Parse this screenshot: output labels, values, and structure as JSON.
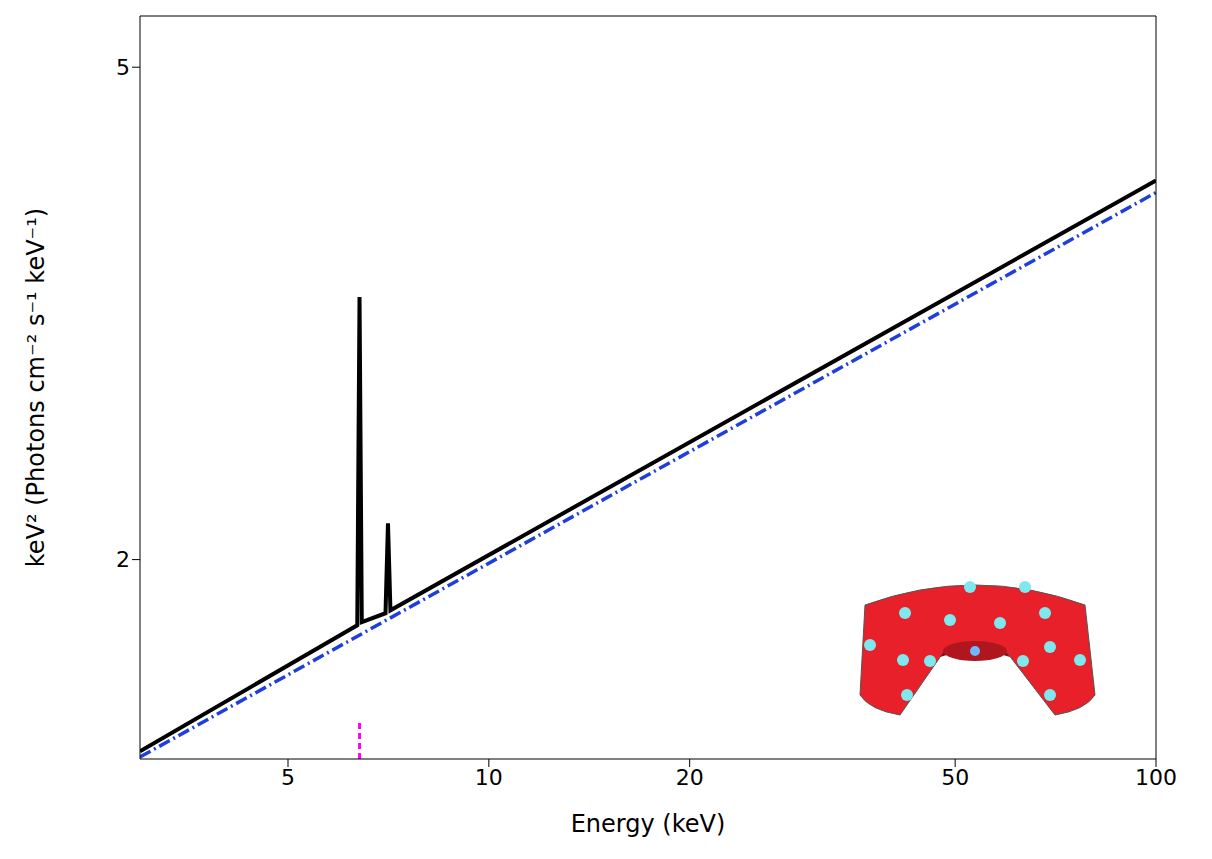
{
  "chart_data": {
    "type": "line",
    "x_label": "Energy (keV)",
    "y_label": "keV² (Photons cm⁻² s⁻¹ keV⁻¹)",
    "log": true,
    "xlim": [
      3,
      100
    ],
    "xticks": [
      5,
      10,
      20,
      50,
      100
    ],
    "ylim": [
      1.38,
      5.5
    ],
    "yticks": [
      2,
      5
    ],
    "series": [
      {
        "color": "#000000",
        "line_style": "solid",
        "x": [
          3,
          6.35,
          6.4,
          6.45,
          7.0,
          7.06,
          7.12,
          100
        ],
        "values": [
          1.4,
          1.77,
          3.26,
          1.78,
          1.81,
          2.14,
          1.82,
          4.05
        ]
      },
      {
        "color": "#1f3fdd",
        "line_style": "dashdot",
        "x": [
          3,
          100
        ],
        "values": [
          1.385,
          3.96
        ]
      }
    ],
    "marker_lines": [
      {
        "x": 6.4,
        "y": [
          1.38,
          1.48
        ],
        "color": "#ff00ff",
        "line_style": "dashed"
      }
    ]
  }
}
